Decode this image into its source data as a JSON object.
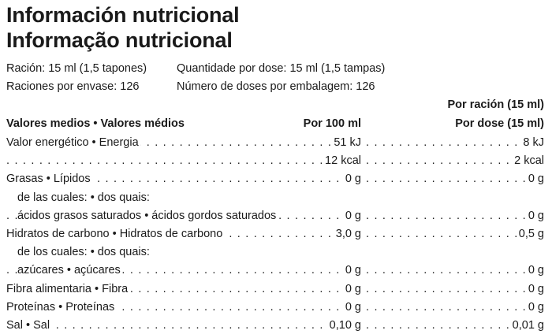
{
  "title": {
    "es": "Información nutricional",
    "pt": "Informação nutricional"
  },
  "serving": {
    "es_portion": "Ración: 15 ml (1,5 tapones)",
    "es_count": "Raciones por envase: 126",
    "pt_portion": "Quantidade por dose: 15 ml (1,5 tampas)",
    "pt_count": "Número de doses por embalagem: 126"
  },
  "table": {
    "col_label_header": "Valores medios • Valores médios",
    "col1_header": "Por 100 ml",
    "col2_header_line1": "Por ración (15 ml)",
    "col2_header_line2": "Por dose (15 ml)",
    "rows": [
      {
        "label": "Valor energético • Energia",
        "per100": "51 kJ",
        "perServing": "8 kJ",
        "indent": false,
        "dots": true
      },
      {
        "label": "",
        "per100": "12 kcal",
        "perServing": "2 kcal",
        "indent": false,
        "dots": true
      },
      {
        "label": "Grasas • Lípidos",
        "per100": "0 g",
        "perServing": "0 g",
        "indent": false,
        "dots": true
      },
      {
        "label": "de las cuales: • dos quais:",
        "per100": "",
        "perServing": "",
        "indent": true,
        "dots": false
      },
      {
        "label": "ácidos grasos saturados • ácidos gordos saturados",
        "per100": "0 g",
        "perServing": "0 g",
        "indent": true,
        "dots": true
      },
      {
        "label": "Hidratos de carbono • Hidratos de carbono",
        "per100": "3,0 g",
        "perServing": "0,5 g",
        "indent": false,
        "dots": true
      },
      {
        "label": "de los cuales: • dos quais:",
        "per100": "",
        "perServing": "",
        "indent": true,
        "dots": false
      },
      {
        "label": "azúcares • açúcares",
        "per100": "0 g",
        "perServing": "0 g",
        "indent": true,
        "dots": true
      },
      {
        "label": "Fibra alimentaria • Fibra",
        "per100": "0 g",
        "perServing": "0 g",
        "indent": false,
        "dots": true
      },
      {
        "label": "Proteínas • Proteínas",
        "per100": "0 g",
        "perServing": "0 g",
        "indent": false,
        "dots": true
      },
      {
        "label": "Sal • Sal",
        "per100": "0,10 g",
        "perServing": "0,01 g",
        "indent": false,
        "dots": true
      }
    ]
  }
}
